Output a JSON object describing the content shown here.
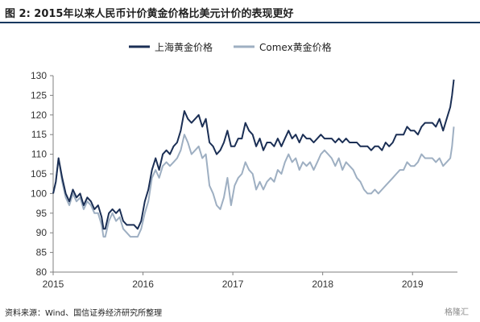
{
  "figure": {
    "caption": "图 2: 2015年以来人民币计价黄金价格比美元计价的表现更好",
    "source": "资料来源：Wind、国信证券经济研究所整理",
    "watermark": "格隆汇"
  },
  "chart_data": {
    "type": "line",
    "title": "",
    "xlabel": "",
    "ylabel": "",
    "ylim": [
      80,
      130
    ],
    "yticks": [
      80,
      85,
      90,
      95,
      100,
      105,
      110,
      115,
      120,
      125,
      130
    ],
    "xlim": [
      2015.0,
      2019.5
    ],
    "xticks": [
      "2015",
      "2016",
      "2017",
      "2018",
      "2019"
    ],
    "grid": false,
    "legend_position": "top-center",
    "series": [
      {
        "name": "上海黄金价格",
        "color": "#1b2f55",
        "x": [
          2015.0,
          2015.03,
          2015.06,
          2015.1,
          2015.14,
          2015.18,
          2015.22,
          2015.26,
          2015.3,
          2015.34,
          2015.38,
          2015.42,
          2015.46,
          2015.5,
          2015.54,
          2015.56,
          2015.58,
          2015.62,
          2015.66,
          2015.7,
          2015.74,
          2015.78,
          2015.82,
          2015.86,
          2015.9,
          2015.94,
          2015.98,
          2016.02,
          2016.06,
          2016.1,
          2016.14,
          2016.18,
          2016.22,
          2016.26,
          2016.3,
          2016.34,
          2016.38,
          2016.42,
          2016.46,
          2016.5,
          2016.54,
          2016.58,
          2016.62,
          2016.66,
          2016.7,
          2016.74,
          2016.78,
          2016.82,
          2016.86,
          2016.9,
          2016.94,
          2016.98,
          2017.02,
          2017.06,
          2017.1,
          2017.14,
          2017.18,
          2017.22,
          2017.26,
          2017.3,
          2017.34,
          2017.38,
          2017.42,
          2017.46,
          2017.5,
          2017.54,
          2017.58,
          2017.62,
          2017.66,
          2017.7,
          2017.74,
          2017.78,
          2017.82,
          2017.86,
          2017.9,
          2017.94,
          2017.98,
          2018.02,
          2018.06,
          2018.1,
          2018.14,
          2018.18,
          2018.22,
          2018.26,
          2018.3,
          2018.34,
          2018.38,
          2018.42,
          2018.46,
          2018.5,
          2018.54,
          2018.58,
          2018.62,
          2018.66,
          2018.7,
          2018.74,
          2018.78,
          2018.82,
          2018.86,
          2018.9,
          2018.94,
          2018.98,
          2019.02,
          2019.06,
          2019.1,
          2019.14,
          2019.18,
          2019.22,
          2019.26,
          2019.3,
          2019.34,
          2019.38,
          2019.42,
          2019.44,
          2019.46
        ],
        "values": [
          100,
          103,
          109,
          104,
          100,
          98,
          101,
          99,
          100,
          97,
          99,
          98,
          96,
          97,
          94,
          91,
          91,
          95,
          96,
          95,
          96,
          93,
          92,
          92,
          92,
          91,
          93,
          98,
          101,
          106,
          109,
          106,
          110,
          111,
          110,
          112,
          113,
          116,
          121,
          119,
          118,
          119,
          120,
          117,
          119,
          113,
          112,
          110,
          111,
          113,
          116,
          112,
          112,
          114,
          114,
          118,
          116,
          115,
          112,
          114,
          111,
          113,
          113,
          112,
          114,
          112,
          114,
          116,
          114,
          115,
          113,
          115,
          114,
          114,
          113,
          114,
          115,
          114,
          114,
          114,
          113,
          114,
          113,
          114,
          113,
          113,
          113,
          112,
          112,
          112,
          111,
          112,
          112,
          111,
          113,
          112,
          113,
          115,
          115,
          115,
          117,
          116,
          116,
          115,
          117,
          118,
          118,
          118,
          117,
          119,
          116,
          119,
          122,
          125,
          129
        ]
      },
      {
        "name": "Comex黄金价格",
        "color": "#9eafc2",
        "x": [
          2015.0,
          2015.03,
          2015.06,
          2015.1,
          2015.14,
          2015.18,
          2015.22,
          2015.26,
          2015.3,
          2015.34,
          2015.38,
          2015.42,
          2015.46,
          2015.5,
          2015.54,
          2015.56,
          2015.58,
          2015.62,
          2015.66,
          2015.7,
          2015.74,
          2015.78,
          2015.82,
          2015.86,
          2015.9,
          2015.94,
          2015.98,
          2016.02,
          2016.06,
          2016.1,
          2016.14,
          2016.18,
          2016.22,
          2016.26,
          2016.3,
          2016.34,
          2016.38,
          2016.42,
          2016.46,
          2016.5,
          2016.54,
          2016.58,
          2016.62,
          2016.66,
          2016.7,
          2016.74,
          2016.78,
          2016.82,
          2016.86,
          2016.9,
          2016.94,
          2016.98,
          2017.02,
          2017.06,
          2017.1,
          2017.14,
          2017.18,
          2017.22,
          2017.26,
          2017.3,
          2017.34,
          2017.38,
          2017.42,
          2017.46,
          2017.5,
          2017.54,
          2017.58,
          2017.62,
          2017.66,
          2017.7,
          2017.74,
          2017.78,
          2017.82,
          2017.86,
          2017.9,
          2017.94,
          2017.98,
          2018.02,
          2018.06,
          2018.1,
          2018.14,
          2018.18,
          2018.22,
          2018.26,
          2018.3,
          2018.34,
          2018.38,
          2018.42,
          2018.46,
          2018.5,
          2018.54,
          2018.58,
          2018.62,
          2018.66,
          2018.7,
          2018.74,
          2018.78,
          2018.82,
          2018.86,
          2018.9,
          2018.94,
          2018.98,
          2019.02,
          2019.06,
          2019.1,
          2019.14,
          2019.18,
          2019.22,
          2019.26,
          2019.3,
          2019.34,
          2019.38,
          2019.42,
          2019.44,
          2019.46
        ],
        "values": [
          100,
          103,
          109,
          103,
          99,
          97,
          100,
          98,
          99,
          96,
          98,
          97,
          95,
          95,
          92,
          89,
          89,
          93,
          95,
          93,
          94,
          91,
          90,
          89,
          89,
          89,
          91,
          95,
          98,
          104,
          106,
          104,
          107,
          108,
          107,
          108,
          109,
          111,
          115,
          113,
          110,
          111,
          112,
          109,
          110,
          102,
          100,
          97,
          96,
          99,
          104,
          97,
          102,
          104,
          105,
          108,
          106,
          105,
          101,
          103,
          101,
          103,
          104,
          103,
          106,
          105,
          108,
          110,
          108,
          109,
          106,
          108,
          107,
          108,
          106,
          108,
          110,
          111,
          110,
          109,
          107,
          109,
          106,
          108,
          107,
          106,
          104,
          103,
          101,
          100,
          100,
          101,
          100,
          101,
          102,
          103,
          104,
          105,
          106,
          106,
          108,
          107,
          107,
          108,
          110,
          109,
          109,
          109,
          108,
          109,
          107,
          108,
          109,
          112,
          117
        ]
      }
    ]
  }
}
